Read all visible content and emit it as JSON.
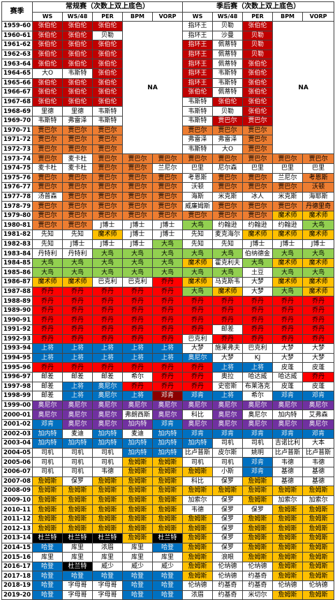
{
  "headers": {
    "season": "赛季",
    "regular": "常规赛（次数上双上底色）",
    "playoff": "季后赛（次数上双上底色）",
    "cols": [
      "WS",
      "WS/48",
      "PER",
      "BPM",
      "VORP"
    ],
    "na": "NA"
  },
  "colors": {
    "r": "#c00000",
    "o": "#ed7d31",
    "y": "#ffc000",
    "g": "#92d050",
    "b": "#0070c0",
    "p": "#7030a0",
    "R": "#ff0000",
    "w": "#ffffff",
    "d": "#8b0000",
    "k": "#000000"
  },
  "rows": [
    {
      "season": "1959-60",
      "reg": [
        "张伯伦",
        "张伯伦",
        "张伯伦"
      ],
      "regc": "rrr",
      "po": [
        "指环王",
        "贝勒",
        "张伯伦"
      ],
      "poc": "wwr"
    },
    {
      "season": "1960-61",
      "reg": [
        "张伯伦",
        "张伯伦",
        "贝勒"
      ],
      "regc": "rrw",
      "po": [
        "指环王",
        "沙曼",
        "贝勒"
      ],
      "poc": "wwr"
    },
    {
      "season": "1961-62",
      "reg": [
        "张伯伦",
        "张伯伦",
        "张伯伦"
      ],
      "regc": "rrr",
      "po": [
        "指环王",
        "佩蒂特",
        "贝勒"
      ],
      "poc": "rwr"
    },
    {
      "season": "1962-63",
      "reg": [
        "张伯伦",
        "张伯伦",
        "张伯伦"
      ],
      "regc": "rrr",
      "po": [
        "指环王",
        "佩蒂特",
        "贝勒"
      ],
      "poc": "rwr"
    },
    {
      "season": "1963-64",
      "reg": [
        "张伯伦",
        "张伯伦",
        "张伯伦"
      ],
      "regc": "rrr",
      "po": [
        "指环王",
        "佩蒂特",
        "张伯伦"
      ],
      "poc": "rwr"
    },
    {
      "season": "1964-65",
      "reg": [
        "大O",
        "韦斯特",
        "张伯伦"
      ],
      "regc": "wwr",
      "po": [
        "指环王",
        "韦斯特",
        "张伯伦"
      ],
      "poc": "rwr"
    },
    {
      "season": "1965-66",
      "reg": [
        "张伯伦",
        "张伯伦",
        "张伯伦"
      ],
      "regc": "rrr",
      "po": [
        "指环王",
        "韦斯特",
        "张伯伦"
      ],
      "poc": "rwr"
    },
    {
      "season": "1966-67",
      "reg": [
        "张伯伦",
        "张伯伦",
        "张伯伦"
      ],
      "regc": "rrr",
      "po": [
        "张伯伦",
        "佩蒂特",
        "张伯伦"
      ],
      "poc": "rwr"
    },
    {
      "season": "1967-68",
      "reg": [
        "张伯伦",
        "张伯伦",
        "张伯伦"
      ],
      "regc": "rrr",
      "po": [
        "韦斯特",
        "张伯伦",
        "张伯伦"
      ],
      "poc": "wrr"
    },
    {
      "season": "1968-69",
      "reg": [
        "里德",
        "里德",
        "韦斯特"
      ],
      "regc": "www",
      "po": [
        "韦斯特",
        "贝勒",
        "张伯伦"
      ],
      "poc": "wwr"
    },
    {
      "season": "1969-70",
      "reg": [
        "韦斯特",
        "弗雷泽",
        "韦斯特"
      ],
      "regc": "www",
      "po": [
        "韦斯特",
        "贾巴尔",
        "贾巴尔"
      ],
      "poc": "wrr"
    },
    {
      "season": "1970-71",
      "reg": [
        "贾巴尔",
        "贾巴尔",
        "贾巴尔"
      ],
      "regc": "ooo",
      "po": [
        "贾巴尔",
        "贾巴尔",
        "贾巴尔"
      ],
      "poc": "ooo"
    },
    {
      "season": "1971-72",
      "reg": [
        "贾巴尔",
        "贾巴尔",
        "贾巴尔"
      ],
      "regc": "ooo",
      "po": [
        "弗雷泽",
        "弗雷泽",
        "贾巴尔"
      ],
      "poc": "wwo"
    },
    {
      "season": "1972-73",
      "reg": [
        "贾巴尔",
        "贾巴尔",
        "贾巴尔"
      ],
      "regc": "ooo",
      "po": [
        "韦斯特",
        "大O",
        "贾巴尔"
      ],
      "poc": "wwo"
    },
    {
      "season": "1973-74",
      "reg": [
        "贾巴尔",
        "麦卡杜",
        "贾巴尔",
        "贾巴尔",
        "贾巴尔"
      ],
      "regc": "owooo",
      "po": [
        "贾巴尔",
        "贾巴尔",
        "贾巴尔",
        "贾巴尔",
        "贾巴尔"
      ],
      "poc": "ooooo"
    },
    {
      "season": "1974-75",
      "reg": [
        "麦卡杜",
        "麦卡杜",
        "贾巴尔",
        "贾巴尔",
        "兰尼尔"
      ],
      "regc": "wwoow",
      "po": [
        "巴里",
        "尼尔森",
        "巴里",
        "巴里",
        "巴里"
      ],
      "poc": "wwwww"
    },
    {
      "season": "1975-76",
      "reg": [
        "贾巴尔",
        "贾巴尔",
        "贾巴尔",
        "贾巴尔",
        "贾巴尔"
      ],
      "regc": "ooooo",
      "po": [
        "考恩斯",
        "贾巴尔",
        "贾巴尔",
        "兰尼尔",
        "考恩斯"
      ],
      "poc": "woowo"
    },
    {
      "season": "1976-77",
      "reg": [
        "贾巴尔",
        "贾巴尔",
        "贾巴尔",
        "贾巴尔",
        "贾巴尔"
      ],
      "regc": "ooooo",
      "po": [
        "沃顿",
        "贾巴尔",
        "贾巴尔",
        "贾巴尔",
        "沃顿"
      ],
      "poc": "woooo"
    },
    {
      "season": "1977-78",
      "reg": [
        "汤普森",
        "贾巴尔",
        "贾巴尔",
        "贾巴尔",
        "贾巴尔"
      ],
      "regc": "woooo",
      "po": [
        "海斯",
        "米克斯",
        "冰人",
        "米克斯",
        "海耶斯"
      ],
      "poc": "wwwww"
    },
    {
      "season": "1978-79",
      "reg": [
        "贾巴尔",
        "贾巴尔",
        "贾巴尔",
        "贾巴尔",
        "贾巴尔"
      ],
      "regc": "ooooo",
      "po": [
        "威廉姆斯",
        "贾巴尔",
        "贾巴尔",
        "贾巴尔",
        "丹德里奇"
      ],
      "poc": "woooo"
    },
    {
      "season": "1979-80",
      "reg": [
        "贾巴尔",
        "贾巴尔",
        "贾巴尔",
        "贾巴尔",
        "贾巴尔"
      ],
      "regc": "ooooo",
      "po": [
        "贾巴尔",
        "贾巴尔",
        "贾巴尔",
        "魔术师",
        "魔术师"
      ],
      "poc": "oooyy"
    },
    {
      "season": "1980-81",
      "reg": [
        "贾巴尔",
        "贾巴尔",
        "J博士",
        "J博士",
        "J博士"
      ],
      "regc": "oowww",
      "po": [
        "大鸟",
        "约翰逊",
        "约翰逊",
        "约翰逊",
        "大鸟"
      ],
      "poc": "gwwwg"
    },
    {
      "season": "1981-82",
      "reg": [
        "先知",
        "先知",
        "魔术师",
        "J博士",
        "J博士"
      ],
      "regc": "wwyww",
      "po": [
        "先知",
        "麦克海尔",
        "魔术师",
        "魔术师",
        "魔术师"
      ],
      "poc": "wwyyy"
    },
    {
      "season": "1982-83",
      "reg": [
        "先知",
        "J博士",
        "J博士",
        "J博士",
        "大鸟"
      ],
      "regc": "wwwwg",
      "po": [
        "先知",
        "先知",
        "J博士",
        "J博士",
        "J博士"
      ],
      "poc": "wwwww"
    },
    {
      "season": "1983-84",
      "reg": [
        "丹特利",
        "丹特利",
        "大鸟",
        "大鸟",
        "大鸟"
      ],
      "regc": "wwggg",
      "po": [
        "大鸟",
        "大鸟",
        "伯纳德金",
        "大鸟",
        "大鸟"
      ],
      "poc": "ggwgg"
    },
    {
      "season": "1984-85",
      "reg": [
        "大鸟",
        "大鸟",
        "大鸟",
        "大鸟",
        "大鸟"
      ],
      "regc": "ggggg",
      "po": [
        "魔术师",
        "霍克利夫",
        "大鸟",
        "魔术师",
        "魔术师"
      ],
      "poc": "ywgyy"
    },
    {
      "season": "1985-86",
      "reg": [
        "大鸟",
        "大鸟",
        "大鸟",
        "大鸟",
        "大鸟"
      ],
      "regc": "ggggg",
      "po": [
        "大鸟",
        "大鸟",
        "土豆",
        "大鸟",
        "大鸟"
      ],
      "poc": "ggwgg"
    },
    {
      "season": "1986-87",
      "reg": [
        "魔术师",
        "魔术师",
        "巴克利",
        "巴克利",
        "乔丹"
      ],
      "regc": "yywwR",
      "po": [
        "魔术师",
        "马克斯韦",
        "大梦",
        "魔术师",
        "魔术师"
      ],
      "poc": "ywwyy"
    },
    {
      "season": "1987-88",
      "reg": [
        "乔丹",
        "乔丹",
        "乔丹",
        "乔丹",
        "乔丹"
      ],
      "regc": "RRRRR",
      "po": [
        "大鸟",
        "魔术师",
        "大梦",
        "大鸟",
        "魔术师"
      ],
      "poc": "gywgy"
    },
    {
      "season": "1988-89",
      "reg": [
        "乔丹",
        "乔丹",
        "乔丹",
        "乔丹",
        "乔丹"
      ],
      "regc": "RRRRR",
      "po": [
        "乔丹",
        "乔丹",
        "乔丹",
        "乔丹",
        "乔丹"
      ],
      "poc": "RRRRR"
    },
    {
      "season": "1989-90",
      "reg": [
        "乔丹",
        "乔丹",
        "乔丹",
        "乔丹",
        "乔丹"
      ],
      "regc": "RRRRR",
      "po": [
        "乔丹",
        "乔丹",
        "乔丹",
        "乔丹",
        "乔丹"
      ],
      "poc": "RRRRR"
    },
    {
      "season": "1990-91",
      "reg": [
        "乔丹",
        "乔丹",
        "乔丹",
        "乔丹",
        "乔丹"
      ],
      "regc": "RRRRR",
      "po": [
        "乔丹",
        "乔丹",
        "乔丹",
        "乔丹",
        "乔丹"
      ],
      "poc": "RRRRR"
    },
    {
      "season": "1991-92",
      "reg": [
        "乔丹",
        "乔丹",
        "乔丹",
        "乔丹",
        "乔丹"
      ],
      "regc": "RRRRR",
      "po": [
        "乔丹",
        "邮差",
        "乔丹",
        "乔丹",
        "乔丹"
      ],
      "poc": "RwRRR"
    },
    {
      "season": "1992-93",
      "reg": [
        "乔丹",
        "乔丹",
        "乔丹",
        "乔丹",
        "乔丹"
      ],
      "regc": "RRRRR",
      "po": [
        "巴克利",
        "乔丹",
        "乔丹",
        "乔丹",
        "乔丹"
      ],
      "poc": "wRRRR"
    },
    {
      "season": "1993-94",
      "reg": [
        "上将",
        "上将",
        "上将",
        "上将",
        "上将"
      ],
      "regc": "bbbbb",
      "po": [
        "大梦",
        "施莱弗夫",
        "巴克利",
        "大梦",
        "大梦"
      ],
      "poc": "wwwww"
    },
    {
      "season": "1994-95",
      "reg": [
        "上将",
        "上将",
        "上将",
        "上将",
        "上将"
      ],
      "regc": "bbbbb",
      "po": [
        "奥尼尔",
        "大梦",
        "KJ",
        "大梦",
        "大梦"
      ],
      "poc": "bwwww"
    },
    {
      "season": "1995-96",
      "reg": [
        "乔丹",
        "乔丹",
        "乔丹",
        "乔丹",
        "乔丹"
      ],
      "regc": "RRRRR",
      "po": [
        "乔丹",
        "上将",
        "上将",
        "皮蓬",
        "皮蓬"
      ],
      "poc": "Rbbww"
    },
    {
      "season": "1996-97",
      "reg": [
        "邮差",
        "邮差",
        "邮差",
        "希尔",
        "乔丹"
      ],
      "regc": "wwwwR",
      "po": [
        "乔丹",
        "奥拉",
        "哈达威",
        "哈达威",
        "乔丹"
      ],
      "poc": "RwwwR"
    },
    {
      "season": "1997-98",
      "reg": [
        "邮差",
        "上将",
        "奥尼尔",
        "乔丹",
        "乔丹"
      ],
      "regc": "wbbRR",
      "po": [
        "乔丹",
        "史密斯",
        "布莱洛克",
        "皮蓬",
        "皮蓬"
      ],
      "poc": "Rwwww"
    },
    {
      "season": "1998-99",
      "reg": [
        "邮差",
        "上将",
        "奥尼尔",
        "上将",
        "邓肯"
      ],
      "regc": "wbbbd",
      "po": [
        "邓肯",
        "上将",
        "希尔",
        "邓肯",
        "邓肯"
      ],
      "poc": "bbwbb"
    },
    {
      "season": "1999-00",
      "reg": [
        "奥尼尔",
        "奥尼尔",
        "奥尼尔",
        "奥尼尔",
        "奥尼尔"
      ],
      "regc": "ppppp",
      "po": [
        "奥尼尔",
        "奥尼尔",
        "奥尼尔",
        "奥尼尔",
        "奥尼尔"
      ],
      "poc": "ppppp"
    },
    {
      "season": "2000-01",
      "reg": [
        "奥尼尔",
        "奥尼尔",
        "奥尼尔",
        "弗朗西斯",
        "奥尼尔"
      ],
      "regc": "pppwp",
      "po": [
        "科比",
        "奥尼尔",
        "奥尼尔",
        "加内特",
        "艾弗森"
      ],
      "poc": "wpwww"
    },
    {
      "season": "2001-02",
      "reg": [
        "邓肯",
        "奥尼尔",
        "奥尼尔",
        "加内特",
        "邓肯"
      ],
      "regc": "bpppb",
      "po": [
        "奥尼尔",
        "奥尼尔",
        "奥尼尔",
        "奥尼尔",
        "奥尼尔"
      ],
      "poc": "ppppp"
    },
    {
      "season": "2002-03",
      "reg": [
        "加内特",
        "麦迪",
        "加内特",
        "麦迪",
        "加内特"
      ],
      "regc": "bwbwb",
      "po": [
        "邓肯",
        "邓肯",
        "邓肯",
        "邓肯",
        "邓肯"
      ],
      "poc": "bbbbb"
    },
    {
      "season": "2003-04",
      "reg": [
        "加内特",
        "加内特",
        "加内特",
        "加内特",
        "加内特"
      ],
      "regc": "bbbbb",
      "po": [
        "加内特",
        "司机",
        "司机",
        "吉诺比利",
        "大本"
      ],
      "poc": "bwwww"
    },
    {
      "season": "2004-05",
      "reg": [
        "司机",
        "司机",
        "司机",
        "加内特",
        "加内特"
      ],
      "regc": "wwwbb",
      "po": [
        "比卢普斯",
        "皮尔斯",
        "姚明",
        "比卢普斯",
        "比卢普斯"
      ],
      "poc": "wwwww"
    },
    {
      "season": "2005-06",
      "reg": [
        "司机",
        "司机",
        "司机",
        "詹姆斯",
        "詹姆斯"
      ],
      "regc": "wwwyy",
      "po": [
        "司机",
        "司机",
        "邓肯",
        "韦德",
        "韦德"
      ],
      "poc": "wwbww"
    },
    {
      "season": "2006-07",
      "reg": [
        "司机",
        "司机",
        "韦德",
        "詹姆斯",
        "詹姆斯"
      ],
      "regc": "wwwyy",
      "po": [
        "詹姆斯",
        "小斯",
        "邓肯",
        "基德",
        "基德"
      ],
      "poc": "ywbww"
    },
    {
      "season": "2007-08",
      "reg": [
        "詹姆斯",
        "保罗",
        "詹姆斯",
        "詹姆斯",
        "詹姆斯"
      ],
      "regc": "ywyyy",
      "po": [
        "科比",
        "保罗",
        "詹姆斯",
        "基德",
        "基德"
      ],
      "poc": "wwyww"
    },
    {
      "season": "2008-09",
      "reg": [
        "詹姆斯",
        "詹姆斯",
        "詹姆斯",
        "詹姆斯",
        "詹姆斯"
      ],
      "regc": "yyyyy",
      "po": [
        "詹姆斯",
        "詹姆斯",
        "詹姆斯",
        "詹姆斯",
        "詹姆斯"
      ],
      "poc": "yyyyy"
    },
    {
      "season": "2009-10",
      "reg": [
        "詹姆斯",
        "詹姆斯",
        "詹姆斯",
        "詹姆斯",
        "詹姆斯"
      ],
      "regc": "yyyyy",
      "po": [
        "加索尔",
        "保罗",
        "詹姆斯",
        "加索尔",
        "加索尔"
      ],
      "poc": "wwyww"
    },
    {
      "season": "2010-11",
      "reg": [
        "詹姆斯",
        "詹姆斯",
        "詹姆斯",
        "詹姆斯",
        "詹姆斯"
      ],
      "regc": "yyyyy",
      "po": [
        "韦德",
        "保罗",
        "保罗",
        "詹姆斯",
        "詹姆斯"
      ],
      "poc": "wwwyy"
    },
    {
      "season": "2011-12",
      "reg": [
        "詹姆斯",
        "詹姆斯",
        "詹姆斯",
        "詹姆斯",
        "詹姆斯"
      ],
      "regc": "yyyyy",
      "po": [
        "詹姆斯",
        "保罗",
        "詹姆斯",
        "詹姆斯",
        "詹姆斯"
      ],
      "poc": "ywyyy"
    },
    {
      "season": "2012-13",
      "reg": [
        "詹姆斯",
        "詹姆斯",
        "詹姆斯",
        "詹姆斯",
        "詹姆斯"
      ],
      "regc": "yyyyy",
      "po": [
        "詹姆斯",
        "保罗",
        "詹姆斯",
        "詹姆斯",
        "詹姆斯"
      ],
      "poc": "ywyyy"
    },
    {
      "season": "2013-14",
      "reg": [
        "杜兰特",
        "杜兰特",
        "杜兰特",
        "詹姆斯",
        "杜兰特"
      ],
      "regc": "kkkyk",
      "po": [
        "詹姆斯",
        "保罗",
        "詹姆斯",
        "詹姆斯",
        "詹姆斯"
      ],
      "poc": "ywyyy"
    },
    {
      "season": "2014-15",
      "reg": [
        "哈登",
        "库里",
        "浓眉",
        "库里",
        "哈登"
      ],
      "regc": "bwwwb",
      "po": [
        "詹姆斯",
        "保罗",
        "詹姆斯",
        "詹姆斯",
        "詹姆斯"
      ],
      "poc": "ywyyy"
    },
    {
      "season": "2015-16",
      "reg": [
        "库里",
        "库里",
        "库里",
        "库里",
        "库里"
      ],
      "regc": "wwwww",
      "po": [
        "詹姆斯",
        "浪眼",
        "詹姆斯",
        "詹姆斯",
        "詹姆斯"
      ],
      "poc": "ywyyy"
    },
    {
      "season": "2016-17",
      "reg": [
        "哈登",
        "杜兰特",
        "威少",
        "威少",
        "威少"
      ],
      "regc": "bkwww",
      "po": [
        "詹姆斯",
        "伦纳德",
        "伦纳德",
        "詹姆斯",
        "詹姆斯"
      ],
      "poc": "ywwyy"
    },
    {
      "season": "2017-18",
      "reg": [
        "哈登",
        "哈登",
        "哈登",
        "哈登",
        "哈登"
      ],
      "regc": "bbbbb",
      "po": [
        "詹姆斯",
        "伦纳德",
        "约基奇",
        "詹姆斯",
        "詹姆斯"
      ],
      "poc": "ywwyy"
    },
    {
      "season": "2018-19",
      "reg": [
        "哈登",
        "字母哥",
        "字母哥",
        "哈登",
        "哈登"
      ],
      "regc": "bwwbb",
      "po": [
        "伦纳德",
        "约基奇",
        "约基奇",
        "伦纳德",
        "伦纳德"
      ],
      "poc": "wwwww"
    },
    {
      "season": "2019-20",
      "reg": [
        "哈登",
        "字母哥",
        "字母哥",
        "哈登",
        "哈登"
      ],
      "regc": "bwwbb",
      "po": [
        "浓眉",
        "约基奇",
        "米切尔",
        "詹姆斯",
        "詹姆斯"
      ],
      "poc": "wwwyy"
    }
  ]
}
